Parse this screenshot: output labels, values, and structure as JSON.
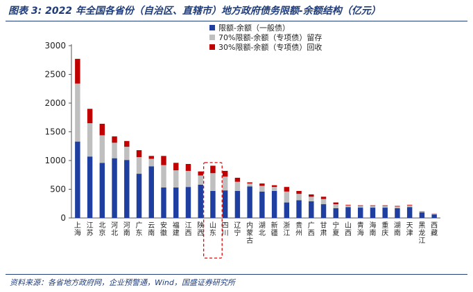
{
  "header": {
    "title": "图表 3: 2022 年全国各省份（自治区、直辖市）地方政府债务限额-余额结构（亿元）"
  },
  "footer": {
    "source": "资料来源：各省地方政府网，企业预警通，Wind，国盛证券研究所"
  },
  "colors": {
    "series1": "#1f3fa0",
    "series2": "#bfbfbf",
    "series3": "#c00000",
    "highlight": "#e00000",
    "rule": "#1f3d7a"
  },
  "chart_data": {
    "type": "bar",
    "stacked": true,
    "categories": [
      "上海",
      "江苏",
      "北京",
      "河北",
      "河南",
      "广东",
      "云南",
      "安徽",
      "福建",
      "江西",
      "陕西",
      "山东",
      "四川",
      "辽宁",
      "内蒙古",
      "湖北",
      "新疆",
      "浙江",
      "贵州",
      "广西",
      "甘肃",
      "宁夏",
      "山西",
      "青海",
      "海南",
      "重庆",
      "湖南",
      "天津",
      "黑龙江",
      "西藏"
    ],
    "series": [
      {
        "name": "限额-余额（一般债）",
        "values": [
          1330,
          1070,
          960,
          1040,
          1010,
          770,
          900,
          530,
          530,
          540,
          580,
          470,
          480,
          470,
          550,
          460,
          470,
          270,
          310,
          290,
          240,
          170,
          190,
          180,
          180,
          180,
          170,
          190,
          100,
          60
        ]
      },
      {
        "name": "70%限额-余额（专项债）留存",
        "values": [
          1010,
          580,
          480,
          270,
          230,
          290,
          130,
          390,
          300,
          280,
          160,
          310,
          240,
          160,
          50,
          100,
          70,
          190,
          110,
          80,
          90,
          70,
          30,
          30,
          30,
          30,
          30,
          30,
          10,
          10
        ]
      },
      {
        "name": "30%限额-余额（专项债）回收",
        "values": [
          430,
          250,
          200,
          110,
          100,
          120,
          50,
          160,
          130,
          120,
          70,
          130,
          100,
          70,
          20,
          40,
          30,
          80,
          50,
          40,
          40,
          30,
          10,
          10,
          10,
          10,
          10,
          10,
          5,
          5
        ]
      }
    ],
    "xlabel": "",
    "ylabel": "",
    "ylim": [
      0,
      3000
    ],
    "yticks": [
      0,
      500,
      1000,
      1500,
      2000,
      2500,
      3000
    ],
    "highlight_category": "山东",
    "legend_position": "top-center",
    "grid": false
  }
}
